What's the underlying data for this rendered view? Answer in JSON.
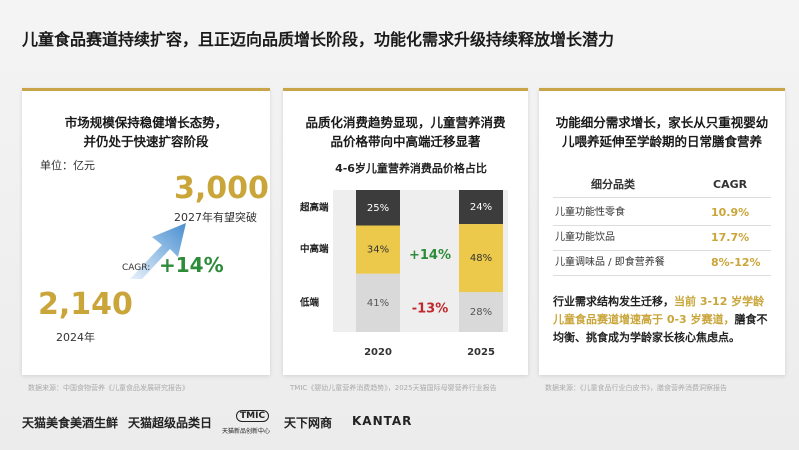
{
  "title": "儿童食品赛道持续扩容，且正迈向品质增长阶段，功能化需求升级持续释放增长潜力",
  "panels": [
    {
      "heading": [
        "市场规模保持稳健增长态势，",
        "并仍处于快速扩容阶段"
      ],
      "unit": "单位：亿元",
      "target_value": "3,000",
      "target_note": "2027年有望突破",
      "cagr_label": "CAGR:",
      "cagr": "+14%",
      "base_value": "2,140",
      "base_year": "2024年",
      "source": "数据来源：中国食物营养《儿童食品发展研究报告》"
    },
    {
      "heading": [
        "品质化消费趋势显现，儿童营养消费",
        "品价格带向中高端迁移显著"
      ],
      "chart": {
        "title": "4-6岁儿童营养消费品价格占比",
        "categories": [
          "2020",
          "2025"
        ],
        "series": [
          {
            "name": "超高端",
            "color": "#3c3c3c",
            "text_color": "#ffffff",
            "values": [
              25,
              24
            ],
            "value_labels": [
              "25%",
              "24%"
            ]
          },
          {
            "name": "中高端",
            "color": "#ecc94b",
            "text_color": "#333333",
            "values": [
              34,
              48
            ],
            "value_labels": [
              "34%",
              "48%"
            ]
          },
          {
            "name": "低端",
            "color": "#d9d9d9",
            "text_color": "#555555",
            "values": [
              41,
              28
            ],
            "value_labels": [
              "41%",
              "28%"
            ]
          }
        ],
        "annotations": [
          {
            "text": "+14%",
            "color": "#2e8b3a"
          },
          {
            "text": "-13%",
            "color": "#c0282d"
          }
        ]
      },
      "source": "TMIC《婴幼儿童营养消费趋势》，2025天猫国际母婴营养行业报告"
    },
    {
      "heading": [
        "功能细分需求增长，家长从只重视婴幼",
        "儿喂养延伸至学龄期的日常膳食营养"
      ],
      "table": {
        "header": [
          "细分品类",
          "CAGR"
        ],
        "rows": [
          [
            "儿童功能性零食",
            "10.9%"
          ],
          [
            "儿童功能饮品",
            "17.7%"
          ],
          [
            "儿童调味品 / 即食营养餐",
            "8%-12%"
          ]
        ]
      },
      "note": {
        "lead": "行业需求结构发生迁移，",
        "highlight": "当前 3-12 岁学龄儿童食品赛道增速高于 0-3 岁赛道，",
        "tail": "膳食不均衡、挑食成为学龄家长核心焦虑点。"
      },
      "source": "数据来源：《儿童食品行业白皮书》，膳食营养消费洞察报告"
    }
  ],
  "footer": [
    "天猫美食美酒生鲜",
    "天猫超级品类日",
    "TMIC",
    "天猫新品创新中心",
    "天下网商",
    "KANTAR"
  ]
}
